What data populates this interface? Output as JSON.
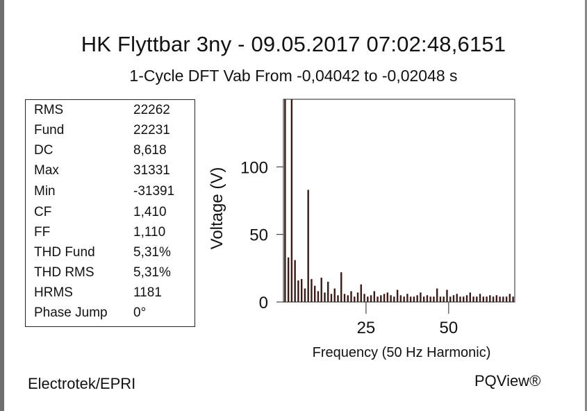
{
  "header": {
    "title": "HK Flyttbar 3ny - 09.05.2017 07:02:48,6151",
    "subtitle": "1-Cycle DFT Vab From -0,04042 to -0,02048 s"
  },
  "stats": [
    {
      "label": "RMS",
      "value": "22262"
    },
    {
      "label": "Fund",
      "value": "22231"
    },
    {
      "label": "DC",
      "value": "8,618"
    },
    {
      "label": "Max",
      "value": "31331"
    },
    {
      "label": "Min",
      "value": "-31391"
    },
    {
      "label": "CF",
      "value": "1,410"
    },
    {
      "label": "FF",
      "value": "1,110"
    },
    {
      "label": "THD Fund",
      "value": "5,31%"
    },
    {
      "label": "THD RMS",
      "value": "5,31%"
    },
    {
      "label": "HRMS",
      "value": "1181"
    },
    {
      "label": "Phase Jump",
      "value": "0°"
    }
  ],
  "chart_data": {
    "type": "bar",
    "xlabel": "Frequency (50 Hz Harmonic)",
    "ylabel": "Voltage (V)",
    "xlim": [
      0,
      70
    ],
    "ylim": [
      0,
      150
    ],
    "xticks": [
      25,
      50
    ],
    "yticks": [
      0,
      50,
      100
    ],
    "grid": false,
    "x": [
      1,
      2,
      3,
      4,
      5,
      6,
      7,
      8,
      9,
      10,
      11,
      12,
      13,
      14,
      15,
      16,
      17,
      18,
      19,
      20,
      21,
      22,
      23,
      24,
      25,
      26,
      27,
      28,
      29,
      30,
      31,
      32,
      33,
      34,
      35,
      36,
      37,
      38,
      39,
      40,
      41,
      42,
      43,
      44,
      45,
      46,
      47,
      48,
      49,
      50,
      51,
      52,
      53,
      54,
      55,
      56,
      57,
      58,
      59,
      60,
      61,
      62,
      63,
      64,
      65,
      66,
      67,
      68,
      69,
      70
    ],
    "values": [
      150,
      33,
      150,
      31,
      16,
      17,
      10,
      83,
      17,
      12,
      8,
      18,
      7,
      15,
      6,
      10,
      5,
      22,
      6,
      5,
      8,
      4,
      7,
      13,
      6,
      4,
      5,
      8,
      4,
      5,
      6,
      7,
      5,
      4,
      9,
      5,
      4,
      6,
      4,
      4,
      5,
      7,
      4,
      5,
      4,
      4,
      10,
      4,
      4,
      9,
      4,
      5,
      6,
      4,
      4,
      5,
      7,
      4,
      4,
      6,
      4,
      4,
      5,
      4,
      5,
      4,
      4,
      4,
      6,
      4
    ]
  },
  "footer": {
    "left": "Electrotek/EPRI",
    "right": "PQView®"
  }
}
